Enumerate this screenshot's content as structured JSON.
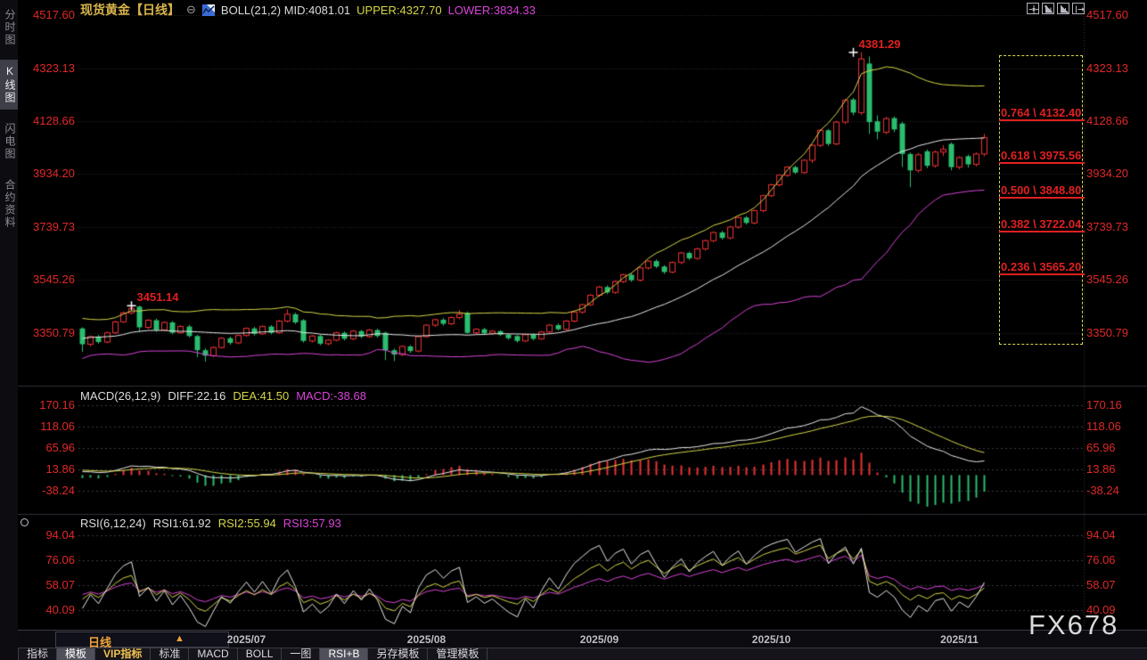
{
  "watermark": "FX678",
  "sidebar": {
    "items": [
      {
        "label": "分时图",
        "selected": false
      },
      {
        "label": "K线图",
        "selected": true
      },
      {
        "label": "闪电图",
        "selected": false
      },
      {
        "label": "合约资料",
        "selected": false
      }
    ]
  },
  "header": {
    "title": "现货黄金【日线】",
    "collapse_symbol": "⊖",
    "chart_icon": "mini-line-chart",
    "indicator_mid": "BOLL(21,2) MID:4081.01",
    "indicator_upper": "UPPER:4327.70",
    "indicator_lower": "LOWER:3834.33"
  },
  "window_icons": [
    {
      "name": "move-icon"
    },
    {
      "name": "zoom-y-axis-icon"
    },
    {
      "name": "zoom-x-axis-icon"
    },
    {
      "name": "exit-panel-icon"
    }
  ],
  "price_axis": {
    "ticks": [
      "4517.60",
      "4323.13",
      "4128.66",
      "3934.20",
      "3739.73",
      "3545.26",
      "3350.79"
    ],
    "color": "#e02828"
  },
  "macd": {
    "header": {
      "name": "MACD(26,12,9)",
      "diff": "DIFF:22.16",
      "dea": "DEA:41.50",
      "macd": "MACD:-38.68"
    },
    "ticks": [
      "170.16",
      "118.06",
      "65.96",
      "13.86",
      "-38.24"
    ]
  },
  "rsi": {
    "header": {
      "name": "RSI(6,12,24)",
      "r1": "RSI1:61.92",
      "r2": "RSI2:55.94",
      "r3": "RSI3:57.93"
    },
    "ticks": [
      "94.04",
      "76.06",
      "58.07",
      "40.09"
    ]
  },
  "fib": {
    "levels": [
      {
        "label": "0.764 \\ 4132.40",
        "price": 4132.4
      },
      {
        "label": "0.618 \\ 3975.56",
        "price": 3975.56
      },
      {
        "label": "0.500 \\ 3848.80",
        "price": 3848.8
      },
      {
        "label": "0.382 \\ 3722.04",
        "price": 3722.04
      },
      {
        "label": "0.236 \\ 3565.20",
        "price": 3565.2
      }
    ]
  },
  "timeline": {
    "period": "日线",
    "arrow": "▲",
    "dates": [
      {
        "label": "2025/07",
        "index": 20
      },
      {
        "label": "2025/08",
        "index": 42
      },
      {
        "label": "2025/09",
        "index": 63
      },
      {
        "label": "2025/10",
        "index": 84
      },
      {
        "label": "2025/11",
        "index": 107
      }
    ]
  },
  "toolbar": {
    "tabs": [
      {
        "label": "指标",
        "selected": false,
        "vip": false
      },
      {
        "label": "模板",
        "selected": true,
        "vip": false
      },
      {
        "label": "VIP指标",
        "selected": false,
        "vip": true
      },
      {
        "label": "标准",
        "selected": false,
        "vip": false
      },
      {
        "label": "MACD",
        "selected": false,
        "vip": false
      },
      {
        "label": "BOLL",
        "selected": false,
        "vip": false
      },
      {
        "label": "一图",
        "selected": false,
        "vip": false
      },
      {
        "label": "RSI+B",
        "selected": true,
        "vip": false
      },
      {
        "label": "另存模板",
        "selected": false,
        "vip": false
      },
      {
        "label": "管理模板",
        "selected": false,
        "vip": false
      }
    ]
  },
  "chart_data": {
    "type": "candlestick",
    "title": "现货黄金 日线 (Spot Gold Daily)",
    "panels": [
      "price+BOLL(21,2)",
      "MACD(26,12,9)",
      "RSI(6,12,24)"
    ],
    "axis": {
      "price_ticks": [
        4517.6,
        4323.13,
        4128.66,
        3934.2,
        3739.73,
        3545.26,
        3350.79
      ],
      "price_ylim": [
        3170,
        4540
      ],
      "macd_ticks": [
        170.16,
        118.06,
        65.96,
        13.86,
        -38.24
      ],
      "rsi_ticks": [
        94.04,
        76.06,
        58.07,
        40.09
      ],
      "grid": "dotted"
    },
    "markers": [
      {
        "index": 6,
        "price": 3451.14,
        "label": "3451.14"
      },
      {
        "index": 94,
        "price": 4381.29,
        "label": "4381.29"
      }
    ],
    "fib_range": {
      "high": 4385.9,
      "low": 3311.7
    },
    "colors": {
      "up": "#ee3232",
      "down": "#2bbd6e",
      "boll_upper": "#d6d64a",
      "boll_mid": "#e8e8e8",
      "boll_lower": "#d844d8",
      "diff": "#e8e8e8",
      "dea": "#d6d64a",
      "hist_pos": "#ee3232",
      "hist_neg": "#2bbd6e",
      "rsi1": "#e8e8e8",
      "rsi2": "#d6d64a",
      "rsi3": "#d844d8",
      "grid": "#2c2c36",
      "axis_text": "#e02828"
    },
    "lead_in_closes": [
      3245,
      3262,
      3280,
      3305,
      3340,
      3322,
      3290,
      3318,
      3355,
      3380,
      3420,
      3435,
      3402,
      3365,
      3330,
      3285,
      3240,
      3205,
      3180,
      3222,
      3260,
      3290,
      3320,
      3345,
      3310,
      3275,
      3295,
      3330,
      3358,
      3385,
      3410,
      3388,
      3352,
      3320,
      3300,
      3332,
      3360,
      3342,
      3325,
      3350
    ],
    "candles": [
      [
        3368,
        3372,
        3282,
        3310
      ],
      [
        3310,
        3342,
        3302,
        3338
      ],
      [
        3338,
        3344,
        3312,
        3318
      ],
      [
        3318,
        3356,
        3314,
        3352
      ],
      [
        3352,
        3396,
        3348,
        3392
      ],
      [
        3392,
        3430,
        3388,
        3425
      ],
      [
        3425,
        3451.14,
        3420,
        3442
      ],
      [
        3448,
        3452,
        3355,
        3372
      ],
      [
        3372,
        3402,
        3366,
        3398
      ],
      [
        3398,
        3404,
        3356,
        3362
      ],
      [
        3362,
        3394,
        3358,
        3390
      ],
      [
        3390,
        3395,
        3346,
        3352
      ],
      [
        3352,
        3380,
        3348,
        3375
      ],
      [
        3375,
        3381,
        3335,
        3340
      ],
      [
        3340,
        3344,
        3262,
        3288
      ],
      [
        3288,
        3295,
        3246,
        3268
      ],
      [
        3268,
        3302,
        3262,
        3298
      ],
      [
        3298,
        3336,
        3294,
        3332
      ],
      [
        3332,
        3338,
        3308,
        3315
      ],
      [
        3315,
        3346,
        3310,
        3342
      ],
      [
        3342,
        3372,
        3338,
        3368
      ],
      [
        3368,
        3374,
        3342,
        3348
      ],
      [
        3348,
        3379,
        3344,
        3375
      ],
      [
        3375,
        3380,
        3346,
        3352
      ],
      [
        3352,
        3399,
        3348,
        3395
      ],
      [
        3395,
        3438,
        3390,
        3420
      ],
      [
        3420,
        3426,
        3384,
        3390
      ],
      [
        3398,
        3402,
        3316,
        3322
      ],
      [
        3322,
        3344,
        3316,
        3340
      ],
      [
        3340,
        3345,
        3306,
        3312
      ],
      [
        3312,
        3329,
        3306,
        3325
      ],
      [
        3325,
        3356,
        3320,
        3352
      ],
      [
        3352,
        3357,
        3324,
        3330
      ],
      [
        3330,
        3362,
        3325,
        3358
      ],
      [
        3358,
        3363,
        3332,
        3338
      ],
      [
        3338,
        3366,
        3333,
        3362
      ],
      [
        3362,
        3367,
        3334,
        3340
      ],
      [
        3352,
        3356,
        3252,
        3288
      ],
      [
        3288,
        3294,
        3248,
        3272
      ],
      [
        3272,
        3306,
        3266,
        3302
      ],
      [
        3302,
        3307,
        3278,
        3285
      ],
      [
        3285,
        3342,
        3280,
        3338
      ],
      [
        3338,
        3384,
        3334,
        3380
      ],
      [
        3380,
        3404,
        3374,
        3400
      ],
      [
        3400,
        3406,
        3378,
        3385
      ],
      [
        3385,
        3412,
        3380,
        3408
      ],
      [
        3408,
        3435,
        3402,
        3420
      ],
      [
        3425,
        3430,
        3348,
        3352
      ],
      [
        3352,
        3369,
        3346,
        3365
      ],
      [
        3365,
        3370,
        3344,
        3350
      ],
      [
        3350,
        3362,
        3344,
        3358
      ],
      [
        3358,
        3362,
        3340,
        3345
      ],
      [
        3345,
        3350,
        3326,
        3332
      ],
      [
        3340,
        3344,
        3316,
        3322
      ],
      [
        3322,
        3349,
        3318,
        3345
      ],
      [
        3345,
        3350,
        3324,
        3330
      ],
      [
        3330,
        3359,
        3326,
        3355
      ],
      [
        3355,
        3384,
        3350,
        3380
      ],
      [
        3380,
        3386,
        3360,
        3365
      ],
      [
        3365,
        3399,
        3361,
        3395
      ],
      [
        3395,
        3432,
        3390,
        3428
      ],
      [
        3428,
        3459,
        3422,
        3455
      ],
      [
        3455,
        3494,
        3450,
        3490
      ],
      [
        3490,
        3524,
        3484,
        3520
      ],
      [
        3520,
        3526,
        3494,
        3500
      ],
      [
        3500,
        3544,
        3495,
        3540
      ],
      [
        3540,
        3569,
        3534,
        3565
      ],
      [
        3565,
        3570,
        3539,
        3545
      ],
      [
        3545,
        3594,
        3540,
        3590
      ],
      [
        3590,
        3619,
        3584,
        3615
      ],
      [
        3615,
        3621,
        3589,
        3595
      ],
      [
        3595,
        3600,
        3568,
        3575
      ],
      [
        3575,
        3614,
        3570,
        3610
      ],
      [
        3610,
        3649,
        3604,
        3645
      ],
      [
        3645,
        3650,
        3619,
        3625
      ],
      [
        3625,
        3664,
        3620,
        3660
      ],
      [
        3660,
        3694,
        3654,
        3690
      ],
      [
        3690,
        3724,
        3684,
        3720
      ],
      [
        3720,
        3726,
        3694,
        3700
      ],
      [
        3700,
        3744,
        3695,
        3740
      ],
      [
        3740,
        3779,
        3734,
        3775
      ],
      [
        3775,
        3781,
        3749,
        3755
      ],
      [
        3755,
        3804,
        3750,
        3800
      ],
      [
        3800,
        3859,
        3794,
        3855
      ],
      [
        3855,
        3899,
        3850,
        3895
      ],
      [
        3895,
        3934,
        3889,
        3930
      ],
      [
        3930,
        3964,
        3924,
        3960
      ],
      [
        3960,
        3965,
        3934,
        3940
      ],
      [
        3940,
        3989,
        3935,
        3985
      ],
      [
        3985,
        4044,
        3975,
        4040
      ],
      [
        4040,
        4099,
        4034,
        4095
      ],
      [
        4095,
        4100,
        4038,
        4045
      ],
      [
        4045,
        4130,
        4040,
        4125
      ],
      [
        4125,
        4210,
        4118,
        4205
      ],
      [
        4208,
        4214,
        4150,
        4160
      ],
      [
        4160,
        4381.29,
        4152,
        4357
      ],
      [
        4340,
        4366,
        4082,
        4125
      ],
      [
        4128,
        4150,
        4062,
        4090
      ],
      [
        4088,
        4144,
        4080,
        4138
      ],
      [
        4140,
        4146,
        4088,
        4098
      ],
      [
        4120,
        4126,
        3960,
        4008
      ],
      [
        4008,
        4014,
        3886,
        3948
      ],
      [
        3948,
        4012,
        3940,
        4005
      ],
      [
        4018,
        4025,
        3956,
        3965
      ],
      [
        3965,
        4021,
        3958,
        4015
      ],
      [
        4015,
        4040,
        4000,
        4025
      ],
      [
        4045,
        4051,
        3948,
        3960
      ],
      [
        3960,
        4000,
        3952,
        3995
      ],
      [
        4000,
        4006,
        3958,
        3970
      ],
      [
        3970,
        4014,
        3962,
        4008
      ],
      [
        4008,
        4082,
        4000,
        4068
      ]
    ]
  }
}
